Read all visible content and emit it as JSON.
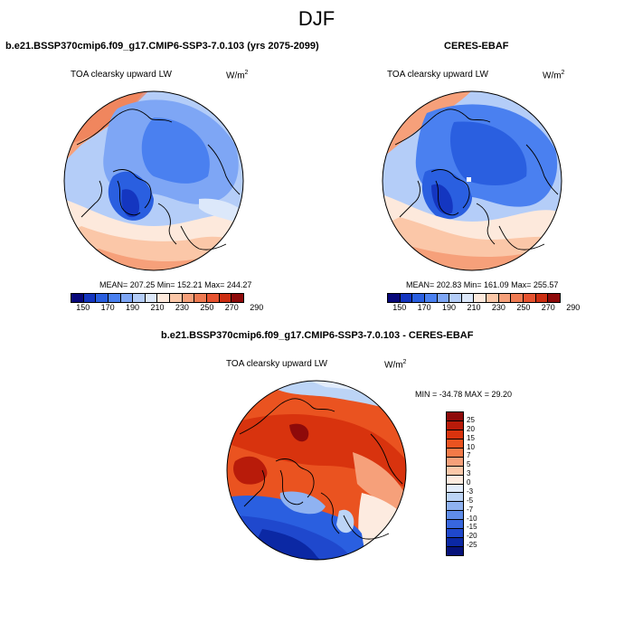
{
  "figure": {
    "title": "DJF",
    "bottom_panel_title": "b.e21.BSSP370cmip6.f09_g17.CMIP6-SSP3-7.0.103 - CERES-EBAF"
  },
  "panels": [
    {
      "title": "b.e21.BSSP370cmip6.f09_g17.CMIP6-SSP3-7.0.103 (yrs 2075-2099)",
      "variable": "TOA clearsky upward LW",
      "unit_base": "W/m",
      "unit_exp": "2",
      "stats": "MEAN= 207.25  Min= 152.21  Max= 244.27"
    },
    {
      "title": "CERES-EBAF",
      "variable": "TOA clearsky upward LW",
      "unit_base": "W/m",
      "unit_exp": "2",
      "stats": "MEAN= 202.83  Min= 161.09  Max= 255.57"
    },
    {
      "variable": "TOA clearsky upward LW",
      "unit_base": "W/m",
      "unit_exp": "2",
      "stats": "MIN = -34.78 MAX =  29.20"
    }
  ],
  "colorbars": {
    "absolute": {
      "colors": [
        "#08087a",
        "#1436c0",
        "#2a5fe0",
        "#4a80f0",
        "#7ea6f5",
        "#b4cdf8",
        "#dce8fa",
        "#fde9dc",
        "#fbc7a8",
        "#f6a07a",
        "#ee7a52",
        "#e65330",
        "#cc2e12",
        "#8e0a0a"
      ],
      "labels": [
        "150",
        "170",
        "190",
        "210",
        "230",
        "250",
        "270",
        "290"
      ]
    },
    "difference": {
      "colors": [
        "#8e0a0a",
        "#b81b0a",
        "#d8330e",
        "#ea5320",
        "#f37a48",
        "#f6a07a",
        "#fbc8aa",
        "#fdebe0",
        "#e2ecfb",
        "#bcd4f6",
        "#8fb2f1",
        "#5f8ce8",
        "#3867de",
        "#1f48cd",
        "#0b28a4",
        "#06127a"
      ],
      "labels": [
        "25",
        "20",
        "15",
        "10",
        "7",
        "5",
        "3",
        "0",
        "-3",
        "-5",
        "-7",
        "-10",
        "-15",
        "-20",
        "-25"
      ]
    }
  },
  "colors": {
    "land_outline": "#000000"
  }
}
